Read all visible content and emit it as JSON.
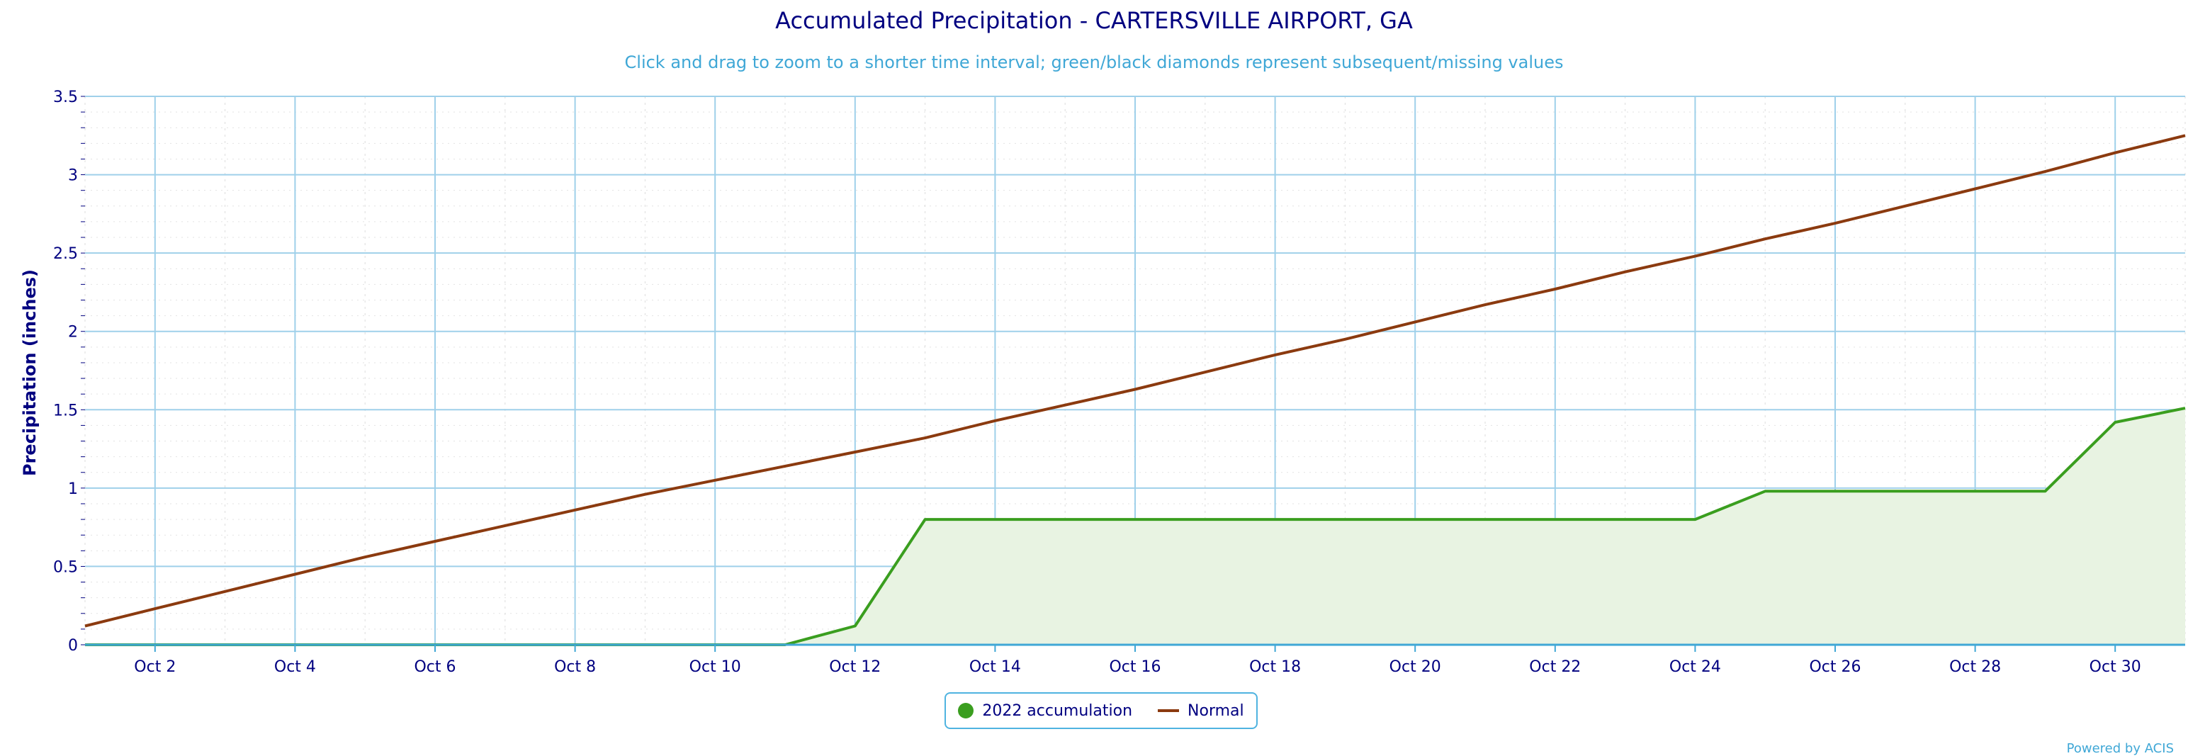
{
  "chart_data": {
    "type": "area",
    "title": "Accumulated Precipitation - CARTERSVILLE AIRPORT, GA",
    "subtitle": "Click and drag to zoom to a shorter time interval; green/black diamonds represent subsequent/missing values",
    "ylabel": "Precipitation (inches)",
    "xlabel": "",
    "ylim": [
      0,
      3.5
    ],
    "yticks": [
      "0",
      "0.5",
      "1",
      "1.5",
      "2",
      "2.5",
      "3",
      "3.5"
    ],
    "xlim": [
      1,
      31
    ],
    "xticks": [
      {
        "day": 2,
        "label": "Oct 2"
      },
      {
        "day": 4,
        "label": "Oct 4"
      },
      {
        "day": 6,
        "label": "Oct 6"
      },
      {
        "day": 8,
        "label": "Oct 8"
      },
      {
        "day": 10,
        "label": "Oct 10"
      },
      {
        "day": 12,
        "label": "Oct 12"
      },
      {
        "day": 14,
        "label": "Oct 14"
      },
      {
        "day": 16,
        "label": "Oct 16"
      },
      {
        "day": 18,
        "label": "Oct 18"
      },
      {
        "day": 20,
        "label": "Oct 20"
      },
      {
        "day": 22,
        "label": "Oct 22"
      },
      {
        "day": 24,
        "label": "Oct 24"
      },
      {
        "day": 26,
        "label": "Oct 26"
      },
      {
        "day": 28,
        "label": "Oct 28"
      },
      {
        "day": 30,
        "label": "Oct 30"
      }
    ],
    "x": [
      1,
      2,
      3,
      4,
      5,
      6,
      7,
      8,
      9,
      10,
      11,
      12,
      13,
      14,
      15,
      16,
      17,
      18,
      19,
      20,
      21,
      22,
      23,
      24,
      25,
      26,
      27,
      28,
      29,
      30,
      31
    ],
    "series": [
      {
        "name": "2022 accumulation",
        "color": "#3a9e1f",
        "fill": "#e8f3e2",
        "values": [
          0,
          0,
          0,
          0,
          0,
          0,
          0,
          0,
          0,
          0,
          0,
          0.12,
          0.8,
          0.8,
          0.8,
          0.8,
          0.8,
          0.8,
          0.8,
          0.8,
          0.8,
          0.8,
          0.8,
          0.8,
          0.98,
          0.98,
          0.98,
          0.98,
          0.98,
          1.42,
          1.51
        ]
      },
      {
        "name": "Normal",
        "color": "#8b3a0f",
        "values": [
          0.12,
          0.23,
          0.34,
          0.45,
          0.56,
          0.66,
          0.76,
          0.86,
          0.96,
          1.05,
          1.14,
          1.23,
          1.32,
          1.43,
          1.53,
          1.63,
          1.74,
          1.85,
          1.95,
          2.06,
          2.17,
          2.27,
          2.38,
          2.48,
          2.59,
          2.69,
          2.8,
          2.91,
          3.02,
          3.14,
          3.25
        ]
      }
    ],
    "grid": true,
    "legend_position": "bottom-center"
  },
  "credit": "Powered by ACIS"
}
